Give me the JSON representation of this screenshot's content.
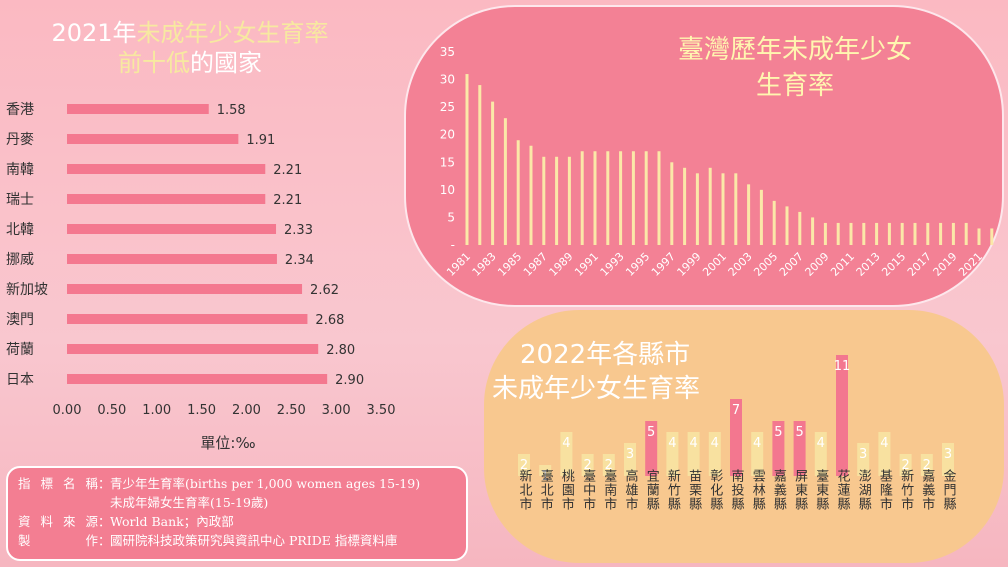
{
  "colors": {
    "left_bar": "#f4788f",
    "taiwan_bar": "#fbe8a8",
    "county_yellow": "#f8e1a0",
    "county_pink": "#f3778f",
    "panel_pink": "#f38195",
    "panel_peach": "#f8c88f"
  },
  "left": {
    "title_line1_plain": "2021年",
    "title_line1_accent": "未成年少女生育率",
    "title_line2_accent": "前十低",
    "title_line2_plain": "的國家",
    "unit_label": "單位:‰"
  },
  "right": {
    "title_line1": "臺灣歷年未成年少女",
    "title_line2": "生育率"
  },
  "county": {
    "title_line1": "2022年各縣市",
    "title_line2": "未成年少女生育率"
  },
  "info": {
    "rows": [
      {
        "key": "指標名稱",
        "value": "青少年生育率(births per 1,000 women ages 15-19)"
      },
      {
        "key": "",
        "value": "未成年婦女生育率(15-19歲)"
      },
      {
        "key": "資料來源",
        "value": "World Bank；內政部"
      },
      {
        "key": "製　作",
        "value": "國研院科技政策研究與資訊中心 PRIDE 指標資料庫"
      }
    ]
  },
  "chart_data": [
    {
      "type": "bar",
      "orientation": "horizontal",
      "categories": [
        "香港",
        "丹麥",
        "南韓",
        "瑞士",
        "北韓",
        "挪威",
        "新加坡",
        "澳門",
        "荷蘭",
        "日本"
      ],
      "values": [
        1.58,
        1.91,
        2.21,
        2.21,
        2.33,
        2.34,
        2.62,
        2.68,
        2.8,
        2.9
      ],
      "value_labels": [
        "1.58",
        "1.91",
        "2.21",
        "2.21",
        "2.33",
        "2.34",
        "2.62",
        "2.68",
        "2.80",
        "2.90"
      ],
      "xlim": [
        0,
        3.5
      ],
      "ticks": [
        "0.00",
        "0.50",
        "1.00",
        "1.50",
        "2.00",
        "2.50",
        "3.00",
        "3.50"
      ],
      "title": "2021年未成年少女生育率前十低的國家",
      "xlabel": "單位:‰"
    },
    {
      "type": "bar",
      "title": "臺灣歷年未成年少女生育率",
      "x": [
        1981,
        1982,
        1983,
        1984,
        1985,
        1986,
        1987,
        1988,
        1989,
        1990,
        1991,
        1992,
        1993,
        1994,
        1995,
        1996,
        1997,
        1998,
        1999,
        2000,
        2001,
        2002,
        2003,
        2004,
        2005,
        2006,
        2007,
        2008,
        2009,
        2010,
        2011,
        2012,
        2013,
        2014,
        2015,
        2016,
        2017,
        2018,
        2019,
        2020,
        2021,
        2022
      ],
      "values": [
        31,
        29,
        26,
        23,
        19,
        18,
        16,
        16,
        16,
        17,
        17,
        17,
        17,
        17,
        17,
        17,
        15,
        14,
        13,
        14,
        13,
        13,
        11,
        10,
        8,
        7,
        6,
        5,
        4,
        4,
        4,
        4,
        4,
        4,
        4,
        4,
        4,
        4,
        4,
        4,
        3,
        3
      ],
      "ylim": [
        0,
        35
      ],
      "yticks": [
        "-",
        "5",
        "10",
        "15",
        "20",
        "25",
        "30",
        "35"
      ],
      "xtick_labels": [
        "1981",
        "1983",
        "1985",
        "1987",
        "1989",
        "1991",
        "1993",
        "1995",
        "1997",
        "1999",
        "2001",
        "2003",
        "2005",
        "2007",
        "2009",
        "2011",
        "2013",
        "2015",
        "2017",
        "2019",
        "2021"
      ]
    },
    {
      "type": "bar",
      "title": "2022年各縣市未成年少女生育率",
      "categories": [
        "新北市",
        "臺北市",
        "桃園市",
        "臺中市",
        "臺南市",
        "高雄市",
        "宜蘭縣",
        "新竹縣",
        "苗栗縣",
        "彰化縣",
        "南投縣",
        "雲林縣",
        "嘉義縣",
        "屏東縣",
        "臺東縣",
        "花蓮縣",
        "澎湖縣",
        "基隆市",
        "新竹市",
        "嘉義市",
        "金門縣"
      ],
      "values": [
        2,
        1,
        4,
        2,
        2,
        3,
        5,
        4,
        4,
        4,
        7,
        4,
        5,
        5,
        4,
        11,
        3,
        4,
        2,
        2,
        3
      ],
      "highlight": [
        false,
        false,
        false,
        false,
        false,
        false,
        true,
        false,
        false,
        false,
        true,
        false,
        true,
        true,
        false,
        true,
        false,
        false,
        false,
        false,
        false
      ]
    }
  ]
}
